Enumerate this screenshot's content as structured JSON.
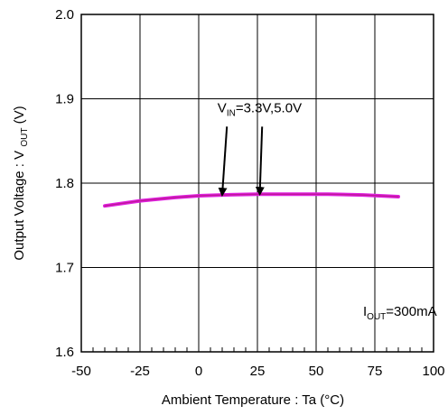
{
  "chart_data": {
    "type": "line",
    "title": "",
    "xlabel": "Ambient Temperature : Ta (°C)",
    "ylabel_main": "Output Voltage : V",
    "ylabel_sub": "OUT",
    "ylabel_unit": " (V)",
    "xlim": [
      -50,
      100
    ],
    "ylim": [
      1.6,
      2.0
    ],
    "x_ticks": [
      -50,
      -25,
      0,
      25,
      50,
      75,
      100
    ],
    "x_tick_labels": [
      "-50",
      "-25",
      "0",
      "25",
      "50",
      "75",
      "100"
    ],
    "y_ticks": [
      1.6,
      1.7,
      1.8,
      1.9,
      2.0
    ],
    "y_tick_labels": [
      "1.6",
      "1.7",
      "1.8",
      "1.9",
      "2.0"
    ],
    "x_minor_step": 5,
    "grid": true,
    "series": [
      {
        "color": "#e020e0",
        "x": [
          -40,
          -25,
          -10,
          0,
          10,
          25,
          40,
          55,
          70,
          85
        ],
        "y": [
          1.773,
          1.779,
          1.783,
          1.785,
          1.786,
          1.787,
          1.787,
          1.787,
          1.786,
          1.784
        ]
      },
      {
        "color": "#c0189a",
        "x": [
          -40,
          -25,
          -10,
          0,
          10,
          25,
          40,
          55,
          70,
          85
        ],
        "y": [
          1.773,
          1.779,
          1.783,
          1.785,
          1.786,
          1.787,
          1.787,
          1.787,
          1.786,
          1.784
        ]
      }
    ],
    "annotations": [
      {
        "text_main": "V",
        "text_sub": "IN",
        "text_rest": "=3.3V,5.0V",
        "anchor_x": 8,
        "anchor_y": 1.884,
        "arrows": [
          {
            "from_x": 12,
            "from_y": 1.867,
            "to_x": 10,
            "to_y": 1.786
          },
          {
            "from_x": 27,
            "from_y": 1.867,
            "to_x": 26,
            "to_y": 1.787
          }
        ]
      },
      {
        "text_main": "I",
        "text_sub": "OUT",
        "text_rest": "=300mA",
        "anchor_x": 70,
        "anchor_y": 1.643
      }
    ]
  }
}
